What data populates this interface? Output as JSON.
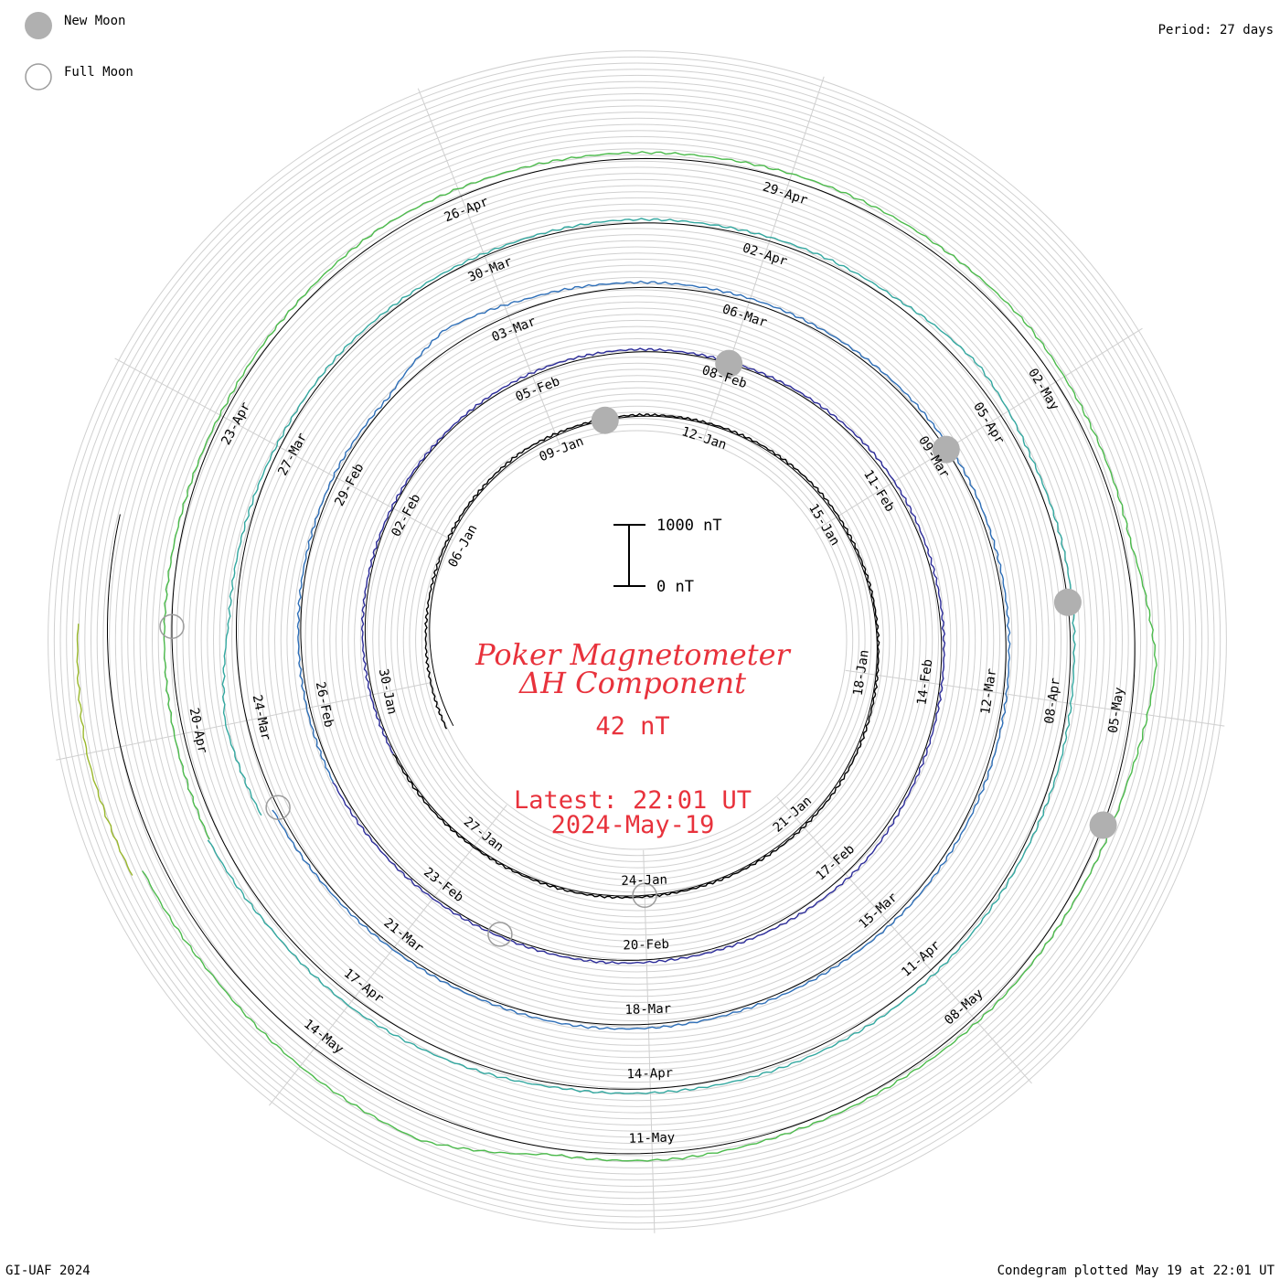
{
  "legend": {
    "new_moon_label": "New Moon",
    "full_moon_label": "Full Moon",
    "new_moon_color": "#b0b0b0",
    "full_moon_color": "#9c9c9c"
  },
  "period_label": "Period: 27 days",
  "footer_left": "GI-UAF 2024",
  "footer_right": "Condegram plotted May 19 at 22:01 UT",
  "title_line1": "Poker Magnetometer",
  "title_line2": "ΔH Component",
  "current_value": "42 nT",
  "latest_time": "Latest: 22:01 UT",
  "latest_date": "2024-May-19",
  "scale": {
    "top_label": "1000 nT",
    "bottom_label": "0 nT"
  },
  "chart_data": {
    "type": "line",
    "chart_kind": "spiral condegram",
    "period_days": 27,
    "start_date": "2024-01-03",
    "end_date": "2024-05-19",
    "value_unit": "nT",
    "scale_range_nT": [
      0,
      1000
    ],
    "colors_by_cycle": [
      "#000000",
      "#2c2c9a",
      "#2e6fb8",
      "#33a8a0",
      "#4cbb4c",
      "#9ab82c",
      "#bfa020",
      "#c07018",
      "#b02010"
    ],
    "delta_h_trace_nT": {
      "cycle_1": {
        "from": "2024-01-03",
        "to": "2024-01-30",
        "values": [
          120,
          90,
          60,
          40,
          35,
          30,
          45,
          30,
          25,
          20,
          25,
          30,
          40,
          30,
          25,
          20,
          30,
          40,
          35,
          30,
          25,
          20,
          30,
          25,
          20,
          30,
          25
        ]
      },
      "cycle_2": {
        "from": "2024-01-30",
        "to": "2024-02-26",
        "values": [
          30,
          40,
          45,
          35,
          30,
          25,
          40,
          50,
          45,
          30,
          30,
          40,
          60,
          55,
          45,
          40,
          35,
          45,
          90,
          70,
          50,
          40,
          45,
          35,
          40,
          45,
          60
        ]
      },
      "cycle_3": {
        "from": "2024-02-26",
        "to": "2024-03-24",
        "values": [
          60,
          50,
          40,
          45,
          60,
          50,
          300,
          150,
          90,
          70,
          60,
          50,
          60,
          70,
          60,
          50,
          55,
          60,
          65,
          50,
          45,
          60,
          70,
          50,
          45,
          55,
          90
        ]
      },
      "cycle_4": {
        "from": "2024-03-24",
        "to": "2024-04-20",
        "values": [
          300,
          350,
          120,
          80,
          60,
          70,
          50,
          40,
          60,
          50,
          70,
          80,
          200,
          90,
          80,
          60,
          70,
          60,
          80,
          100,
          90,
          70,
          60,
          120,
          160,
          130,
          200
        ]
      },
      "cycle_5": {
        "from": "2024-04-20",
        "to": "2024-05-17",
        "values": [
          180,
          150,
          120,
          80,
          60,
          90,
          160,
          120,
          100,
          90,
          110,
          130,
          180,
          140,
          120,
          350,
          160,
          100,
          90,
          70,
          80,
          120,
          100,
          450,
          380,
          300,
          330
        ]
      },
      "cycle_6": {
        "from": "2024-05-17",
        "to": "2024-05-19",
        "values": [
          520,
          560,
          480
        ]
      }
    },
    "date_labels": [
      {
        "day": 4,
        "label": "06-Jan"
      },
      {
        "day": 7,
        "label": "09-Jan"
      },
      {
        "day": 10,
        "label": "12-Jan"
      },
      {
        "day": 13,
        "label": "15-Jan"
      },
      {
        "day": 16,
        "label": "18-Jan"
      },
      {
        "day": 19,
        "label": "21-Jan"
      },
      {
        "day": 22,
        "label": "24-Jan"
      },
      {
        "day": 25,
        "label": "27-Jan"
      },
      {
        "day": 28,
        "label": "30-Jan"
      },
      {
        "day": 31,
        "label": "02-Feb"
      },
      {
        "day": 34,
        "label": "05-Feb"
      },
      {
        "day": 37,
        "label": "08-Feb"
      },
      {
        "day": 40,
        "label": "11-Feb"
      },
      {
        "day": 43,
        "label": "14-Feb"
      },
      {
        "day": 46,
        "label": "17-Feb"
      },
      {
        "day": 49,
        "label": "20-Feb"
      },
      {
        "day": 52,
        "label": "23-Feb"
      },
      {
        "day": 55,
        "label": "26-Feb"
      },
      {
        "day": 58,
        "label": "29-Feb"
      },
      {
        "day": 61,
        "label": "03-Mar"
      },
      {
        "day": 64,
        "label": "06-Mar"
      },
      {
        "day": 67,
        "label": "09-Mar"
      },
      {
        "day": 70,
        "label": "12-Mar"
      },
      {
        "day": 73,
        "label": "15-Mar"
      },
      {
        "day": 76,
        "label": "18-Mar"
      },
      {
        "day": 79,
        "label": "21-Mar"
      },
      {
        "day": 82,
        "label": "24-Mar"
      },
      {
        "day": 85,
        "label": "27-Mar"
      },
      {
        "day": 88,
        "label": "30-Mar"
      },
      {
        "day": 91,
        "label": "02-Apr"
      },
      {
        "day": 94,
        "label": "05-Apr"
      },
      {
        "day": 97,
        "label": "08-Apr"
      },
      {
        "day": 100,
        "label": "11-Apr"
      },
      {
        "day": 103,
        "label": "14-Apr"
      },
      {
        "day": 106,
        "label": "17-Apr"
      },
      {
        "day": 109,
        "label": "20-Apr"
      },
      {
        "day": 112,
        "label": "23-Apr"
      },
      {
        "day": 115,
        "label": "26-Apr"
      },
      {
        "day": 118,
        "label": "29-Apr"
      },
      {
        "day": 121,
        "label": "02-May"
      },
      {
        "day": 124,
        "label": "05-May"
      },
      {
        "day": 127,
        "label": "08-May"
      },
      {
        "day": 130,
        "label": "11-May"
      },
      {
        "day": 133,
        "label": "14-May"
      }
    ],
    "new_moon_days": [
      8,
      37,
      67,
      96,
      125
    ],
    "full_moon_days": [
      22,
      51,
      81,
      110
    ]
  }
}
